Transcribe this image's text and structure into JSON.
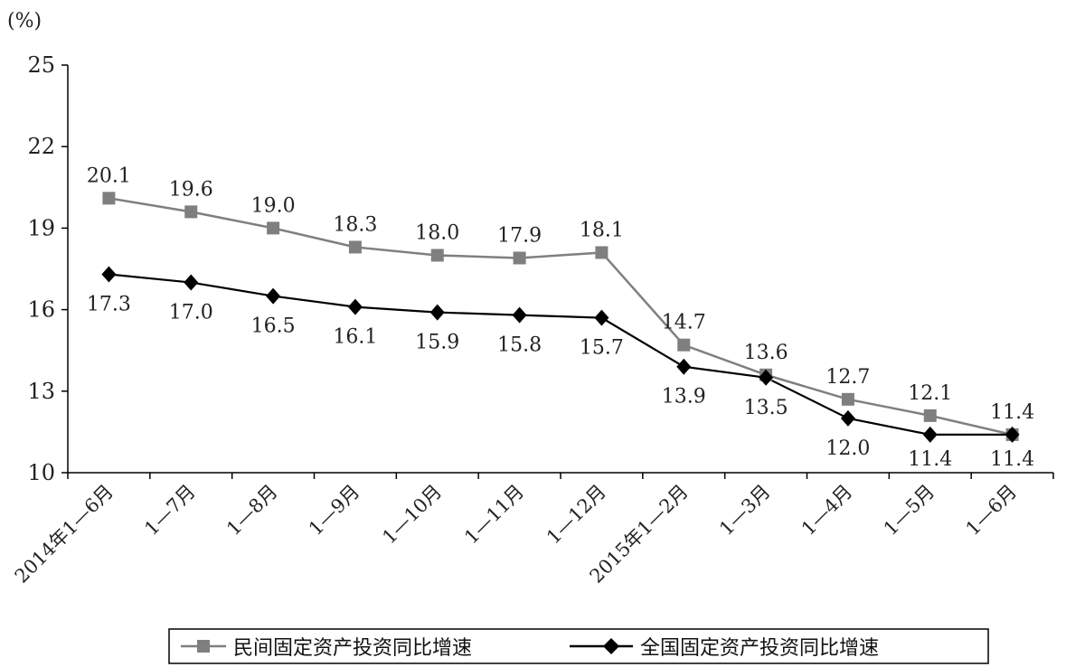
{
  "chart_data": {
    "type": "line",
    "unit_label": "(%)",
    "categories": [
      "2014年1—6月",
      "1—7月",
      "1—8月",
      "1—9月",
      "1—10月",
      "1—11月",
      "1—12月",
      "2015年1—2月",
      "1—3月",
      "1—4月",
      "1—5月",
      "1—6月"
    ],
    "ylim": [
      10,
      25
    ],
    "yticks": [
      10,
      13,
      16,
      19,
      22,
      25
    ],
    "grid": false,
    "legend_position": "bottom",
    "series": [
      {
        "name": "民间固定资产投资同比增速",
        "values": [
          20.1,
          19.6,
          19.0,
          18.3,
          18.0,
          17.9,
          18.1,
          14.7,
          13.6,
          12.7,
          12.1,
          11.4
        ],
        "labels": [
          "20.1",
          "19.6",
          "19.0",
          "18.3",
          "18.0",
          "17.9",
          "18.1",
          "14.7",
          "13.6",
          "12.7",
          "12.1",
          "11.4"
        ],
        "color": "#7f7f7f",
        "marker": "square"
      },
      {
        "name": "全国固定资产投资同比增速",
        "values": [
          17.3,
          17.0,
          16.5,
          16.1,
          15.9,
          15.8,
          15.7,
          13.9,
          13.5,
          12.0,
          11.4,
          11.4
        ],
        "labels": [
          "17.3",
          "17.0",
          "16.5",
          "16.1",
          "15.9",
          "15.8",
          "15.7",
          "13.9",
          "13.5",
          "12.0",
          "11.4",
          "11.4"
        ],
        "color": "#000000",
        "marker": "diamond"
      }
    ]
  }
}
